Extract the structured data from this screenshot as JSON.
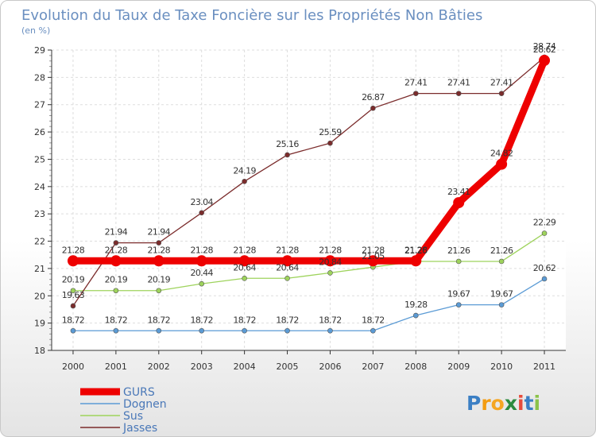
{
  "chart_data": {
    "type": "line",
    "title": "Evolution du Taux de Taxe Foncière sur les Propriétés Non Bâties",
    "subtitle": "(en %)",
    "xlabel": "",
    "ylabel": "",
    "ylim": [
      18,
      29
    ],
    "yticks": [
      "18",
      "19",
      "20",
      "21",
      "22",
      "23",
      "24",
      "25",
      "26",
      "27",
      "28",
      "29"
    ],
    "categories": [
      "2000",
      "2001",
      "2002",
      "2003",
      "2004",
      "2005",
      "2006",
      "2007",
      "2008",
      "2009",
      "2010",
      "2011"
    ],
    "legend_position": "bottom-left",
    "series": [
      {
        "name": "GURS",
        "color": "#ee0000",
        "values": [
          21.28,
          21.28,
          21.28,
          21.28,
          21.28,
          21.28,
          21.28,
          21.28,
          21.28,
          23.41,
          24.82,
          28.62
        ]
      },
      {
        "name": "Dognen",
        "color": "#5b9bd5",
        "values": [
          18.72,
          18.72,
          18.72,
          18.72,
          18.72,
          18.72,
          18.72,
          18.72,
          19.28,
          19.67,
          19.67,
          20.62
        ]
      },
      {
        "name": "Sus",
        "color": "#9ed35c",
        "values": [
          20.19,
          20.19,
          20.19,
          20.44,
          20.64,
          20.64,
          20.84,
          21.05,
          21.26,
          21.26,
          21.26,
          22.29
        ]
      },
      {
        "name": "Jasses",
        "color": "#7b2c2c",
        "values": [
          19.63,
          21.94,
          21.94,
          23.04,
          24.19,
          25.16,
          25.59,
          26.87,
          27.41,
          27.41,
          27.41,
          28.74
        ]
      }
    ]
  },
  "logo": {
    "text": "Proxiti"
  }
}
